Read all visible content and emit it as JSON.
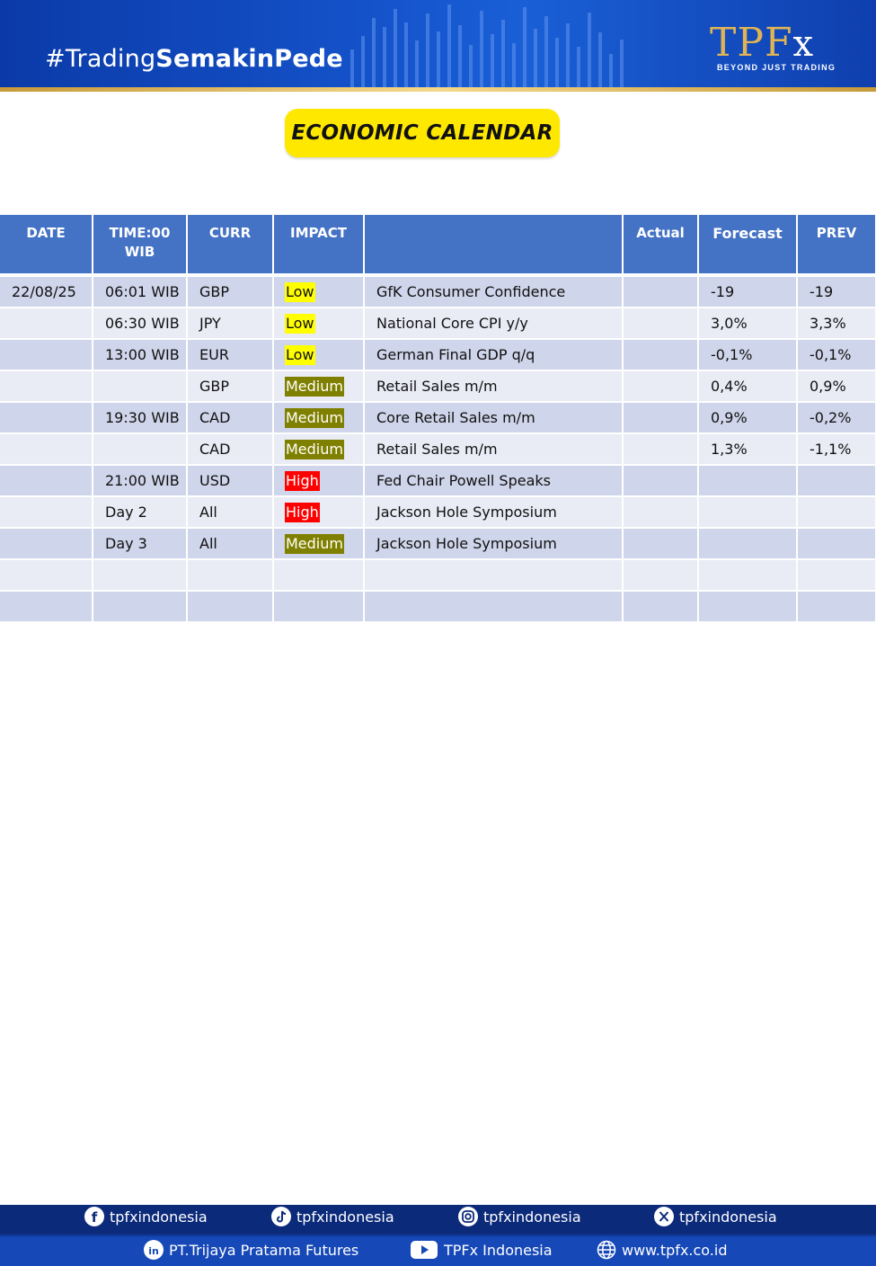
{
  "header": {
    "hashtag_prefix": "#Trading",
    "hashtag_bold": "SemakinPede",
    "logo_main": "TPF",
    "logo_x": "x",
    "logo_tagline": "BEYOND JUST TRADING"
  },
  "title": "ECONOMIC CALENDAR",
  "table": {
    "headers": {
      "date": "DATE",
      "time_line1": "TIME:00",
      "time_line2": "WIB",
      "curr": "CURR",
      "impact": "IMPACT",
      "event": "",
      "actual": "Actual",
      "forecast": "Forecast",
      "prev": "PREV"
    },
    "rows": [
      {
        "date": "22/08/25",
        "time": "06:01 WIB",
        "curr": "GBP",
        "impact": "Low",
        "event": "GfK Consumer Confidence",
        "actual": "",
        "forecast": "-19",
        "prev": "-19"
      },
      {
        "date": "",
        "time": "06:30 WIB",
        "curr": "JPY",
        "impact": "Low",
        "event": "National Core CPI y/y",
        "actual": "",
        "forecast": "3,0%",
        "prev": "3,3%"
      },
      {
        "date": "",
        "time": "13:00 WIB",
        "curr": "EUR",
        "impact": "Low",
        "event": "German Final GDP q/q",
        "actual": "",
        "forecast": "-0,1%",
        "prev": "-0,1%"
      },
      {
        "date": "",
        "time": "",
        "curr": "GBP",
        "impact": "Medium",
        "event": "Retail Sales m/m",
        "actual": "",
        "forecast": "0,4%",
        "prev": "0,9%"
      },
      {
        "date": "",
        "time": "19:30 WIB",
        "curr": "CAD",
        "impact": "Medium",
        "event": "Core Retail Sales m/m",
        "actual": "",
        "forecast": "0,9%",
        "prev": "-0,2%"
      },
      {
        "date": "",
        "time": "",
        "curr": "CAD",
        "impact": "Medium",
        "event": "Retail Sales m/m",
        "actual": "",
        "forecast": "1,3%",
        "prev": "-1,1%"
      },
      {
        "date": "",
        "time": "21:00 WIB",
        "curr": "USD",
        "impact": "High",
        "event": "Fed Chair Powell Speaks",
        "actual": "",
        "forecast": "",
        "prev": ""
      },
      {
        "date": "",
        "time": "Day 2",
        "curr": "All",
        "impact": "High",
        "event": "Jackson Hole Symposium",
        "actual": "",
        "forecast": "",
        "prev": ""
      },
      {
        "date": "",
        "time": "Day 3",
        "curr": "All",
        "impact": "Medium",
        "event": "Jackson Hole Symposium",
        "actual": "",
        "forecast": "",
        "prev": ""
      },
      {
        "date": "",
        "time": "",
        "curr": "",
        "impact": "",
        "event": "",
        "actual": "",
        "forecast": "",
        "prev": ""
      },
      {
        "date": "",
        "time": "",
        "curr": "",
        "impact": "",
        "event": "",
        "actual": "",
        "forecast": "",
        "prev": ""
      }
    ]
  },
  "impact_colors": {
    "Low": "#ffff00",
    "Medium": "#808000",
    "High": "#ff0000"
  },
  "footer": {
    "facebook": {
      "icon": "facebook-icon",
      "label": "tpfxindonesia"
    },
    "tiktok": {
      "icon": "tiktok-icon",
      "label": "tpfxindonesia"
    },
    "instagram": {
      "icon": "instagram-icon",
      "label": "tpfxindonesia"
    },
    "x": {
      "icon": "x-icon",
      "label": "tpfxindonesia"
    },
    "linkedin": {
      "icon": "linkedin-icon",
      "label": "PT.Trijaya Pratama Futures"
    },
    "youtube": {
      "icon": "youtube-icon",
      "label": "TPFx Indonesia"
    },
    "website": {
      "icon": "globe-icon",
      "label": "www.tpfx.co.id"
    }
  }
}
